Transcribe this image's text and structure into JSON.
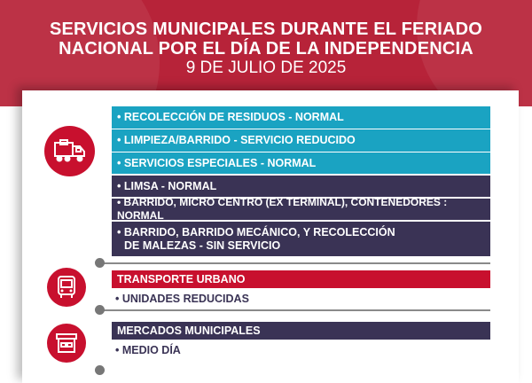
{
  "header": {
    "title_line1": "SERVICIOS MUNICIPALES DURANTE EL FERIADO",
    "title_line2": "NACIONAL POR EL DÍA DE LA INDEPENDENCIA",
    "date": "9 DE JULIO DE 2025"
  },
  "residuos": {
    "icon": "garbage-truck-icon",
    "items": [
      "• RECOLECCIÓN DE RESIDUOS - NORMAL",
      "• LIMPIEZA/BARRIDO - SERVICIO REDUCIDO",
      "• SERVICIOS ESPECIALES - NORMAL",
      "• LIMSA - NORMAL",
      "• BARRIDO, MICRO CENTRO (EX TERMINAL), CONTENEDORES : NORMAL",
      "• BARRIDO, BARRIDO MECÁNICO, Y RECOLECCIÓN",
      "DE  MALEZAS - SIN SERVICIO"
    ]
  },
  "transporte": {
    "icon": "bus-icon",
    "title": "TRANSPORTE  URBANO",
    "detail": "• UNIDADES REDUCIDAS"
  },
  "mercados": {
    "icon": "market-stall-icon",
    "title": "MERCADOS MUNICIPALES",
    "detail": "• MEDIO DÍA"
  },
  "colors": {
    "background_red": "#b72339",
    "cyan": "#1aa3c2",
    "navy": "#3a3355",
    "accent_red": "#c8102e"
  }
}
